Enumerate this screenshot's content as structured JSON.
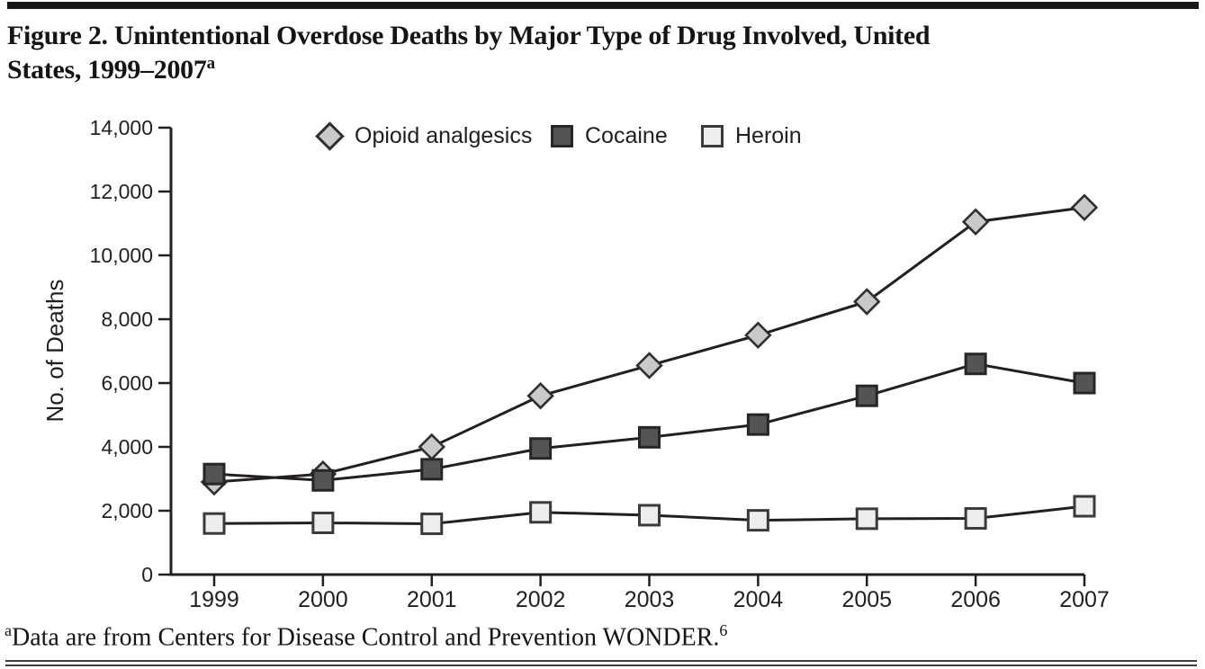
{
  "page": {
    "title_line1": "Figure 2. Unintentional Overdose Deaths by Major Type of Drug Involved, United",
    "title_line2": "States, 1999–2007",
    "title_superscript": "a",
    "footnote_superscript": "a",
    "footnote_text": "Data are from Centers for Disease Control and Prevention WONDER.",
    "footnote_ref_superscript": "6"
  },
  "chart_data": {
    "type": "line",
    "title": "Figure 2. Unintentional Overdose Deaths by Major Type of Drug Involved, United States, 1999–2007",
    "ylabel": "No. of Deaths",
    "xlabel": "",
    "ylim": [
      0,
      14000
    ],
    "grid": false,
    "legend_position": "top",
    "y_tick_values": [
      0,
      2000,
      4000,
      6000,
      8000,
      10000,
      12000,
      14000
    ],
    "y_tick_labels": [
      "0",
      "2,000",
      "4,000",
      "6,000",
      "8,000",
      "10,000",
      "12,000",
      "14,000"
    ],
    "categories": [
      "1999",
      "2000",
      "2001",
      "2002",
      "2003",
      "2004",
      "2005",
      "2006",
      "2007"
    ],
    "axis_color": "#231f20",
    "line_color": "#231f20",
    "series": [
      {
        "name": "Opioid analgesics",
        "marker": "diamond",
        "fill": "#c9c9c9",
        "stroke": "#2f2f2f",
        "values": [
          2900,
          3150,
          4000,
          5600,
          6550,
          7500,
          8550,
          11050,
          11500
        ]
      },
      {
        "name": "Cocaine",
        "marker": "square",
        "fill": "#545454",
        "stroke": "#262626",
        "values": [
          3150,
          2950,
          3300,
          3950,
          4300,
          4700,
          5600,
          6600,
          6000
        ]
      },
      {
        "name": "Heroin",
        "marker": "square",
        "fill": "#ededed",
        "stroke": "#3a3a3a",
        "values": [
          1600,
          1620,
          1590,
          1950,
          1860,
          1700,
          1750,
          1760,
          2140
        ]
      }
    ]
  }
}
